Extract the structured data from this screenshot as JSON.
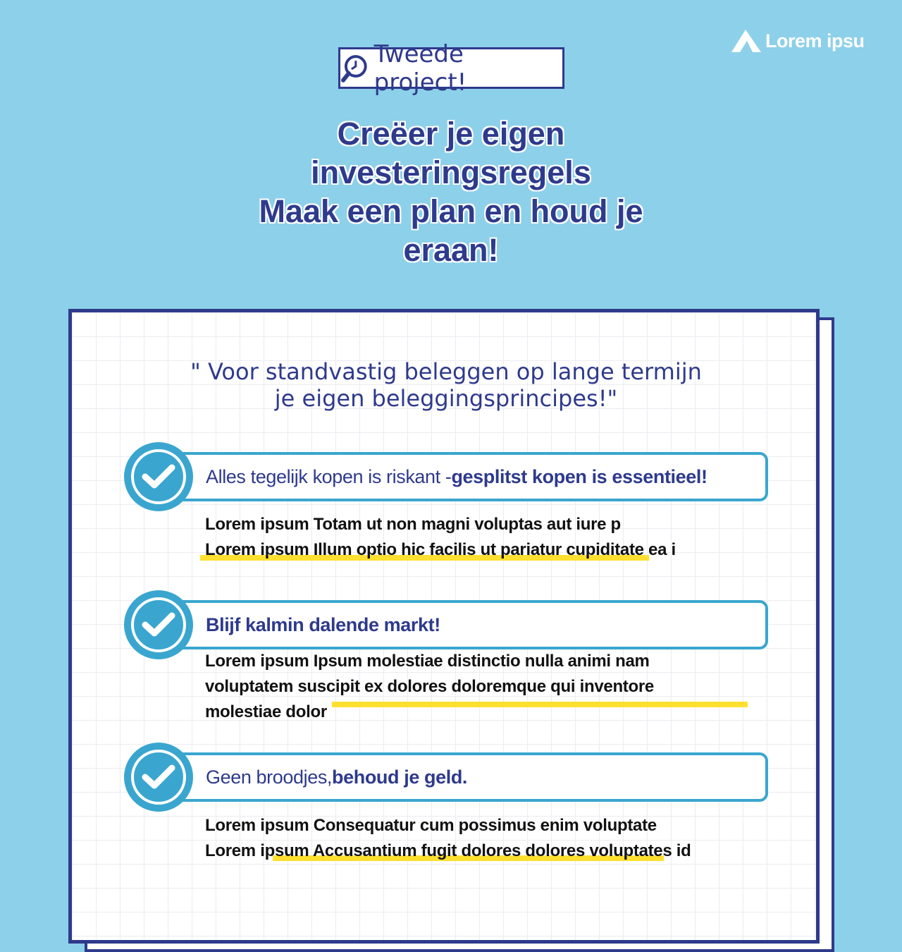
{
  "logo": {
    "text": "Lorem ipsu"
  },
  "tag": {
    "label": "Tweede project!"
  },
  "title": {
    "line1": "Creëer je eigen",
    "line2": "investeringsregels",
    "line3": "Maak een plan en houd je",
    "line4": "eraan!"
  },
  "quote": {
    "line1": "\" Voor standvastig beleggen op lange termijn",
    "line2": "je eigen beleggingsprincipes!\""
  },
  "items": [
    {
      "heading_normal": "Alles tegelijk kopen is riskant - ",
      "heading_bold": "gesplitst kopen is essentieel!",
      "lines": [
        "Lorem ipsum Totam ut non magni voluptas aut iure p",
        "Lorem ipsum Illum optio hic facilis ut pariatur cupiditate ea i"
      ]
    },
    {
      "heading_normal": "",
      "heading_bold": "Blijf kalmin dalende markt!",
      "lines": [
        "Lorem ipsum Ipsum molestiae distinctio nulla animi nam",
        "voluptatem suscipit ex dolores doloremque qui inventore",
        "molestiae dolor"
      ]
    },
    {
      "heading_normal": "Geen broodjes, ",
      "heading_bold": "behoud je geld.",
      "lines": [
        "Lorem ipsum Consequatur cum possimus enim voluptate",
        "Lorem ipsum Accusantium fugit dolores dolores voluptates id"
      ]
    }
  ],
  "colors": {
    "background": "#8dd0e9",
    "navy": "#2e3a8c",
    "accent": "#3aa6cf",
    "highlight": "#ffe030"
  }
}
